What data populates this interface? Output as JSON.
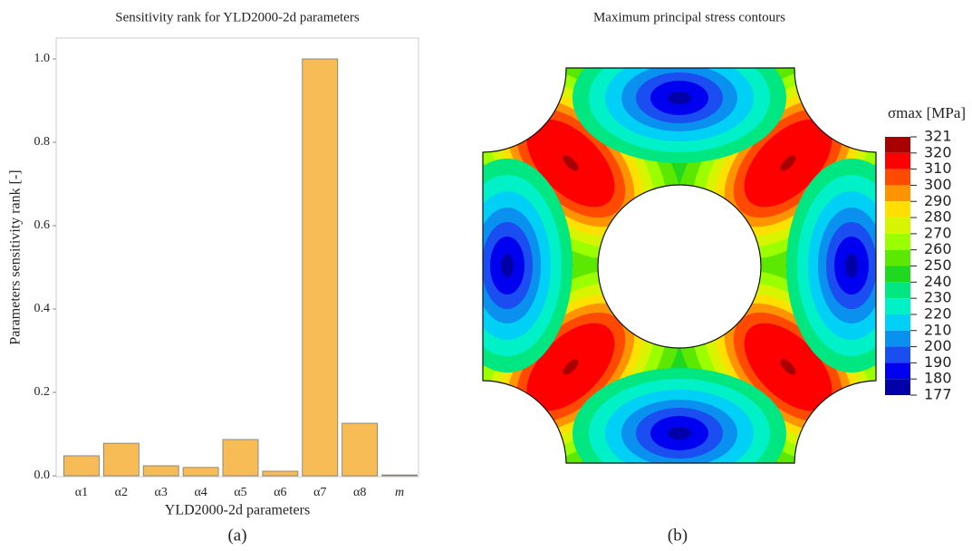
{
  "chart_data": [
    {
      "type": "bar",
      "title": "Sensitivity rank for YLD2000-2d parameters",
      "x_label": "YLD2000-2d parameters",
      "y_label": "Parameters sensitivity rank [-]",
      "panel_label": "(a)",
      "categories": [
        "α1",
        "α2",
        "α3",
        "α4",
        "α5",
        "α6",
        "α7",
        "α8",
        "m"
      ],
      "values": [
        0.048,
        0.078,
        0.024,
        0.02,
        0.087,
        0.011,
        1.0,
        0.126,
        0.002
      ],
      "color": "#f8bc57",
      "ylim": [
        0,
        1.05
      ],
      "yticks": [
        {
          "value": 0,
          "label": "0.0"
        },
        0.2,
        0.4,
        0.6,
        0.8,
        {
          "value": 1,
          "label": "1.0"
        }
      ]
    },
    {
      "type": "contour",
      "title": "Maximum principal stress contours",
      "legend_title": "σmax [MPa]",
      "panel_label": "(b)",
      "levels": [
        321,
        320,
        310,
        300,
        290,
        280,
        270,
        260,
        250,
        240,
        230,
        220,
        210,
        200,
        190,
        180,
        177
      ],
      "colors": [
        "#a80000",
        "#ff0000",
        "#ff4a00",
        "#ff9400",
        "#ffe000",
        "#d7f500",
        "#9cff00",
        "#5ce800",
        "#1fd81f",
        "#00e680",
        "#00f0c8",
        "#00d0f5",
        "#0a90ee",
        "#1a4ef0",
        "#0000f0",
        "#0000a8"
      ]
    }
  ]
}
